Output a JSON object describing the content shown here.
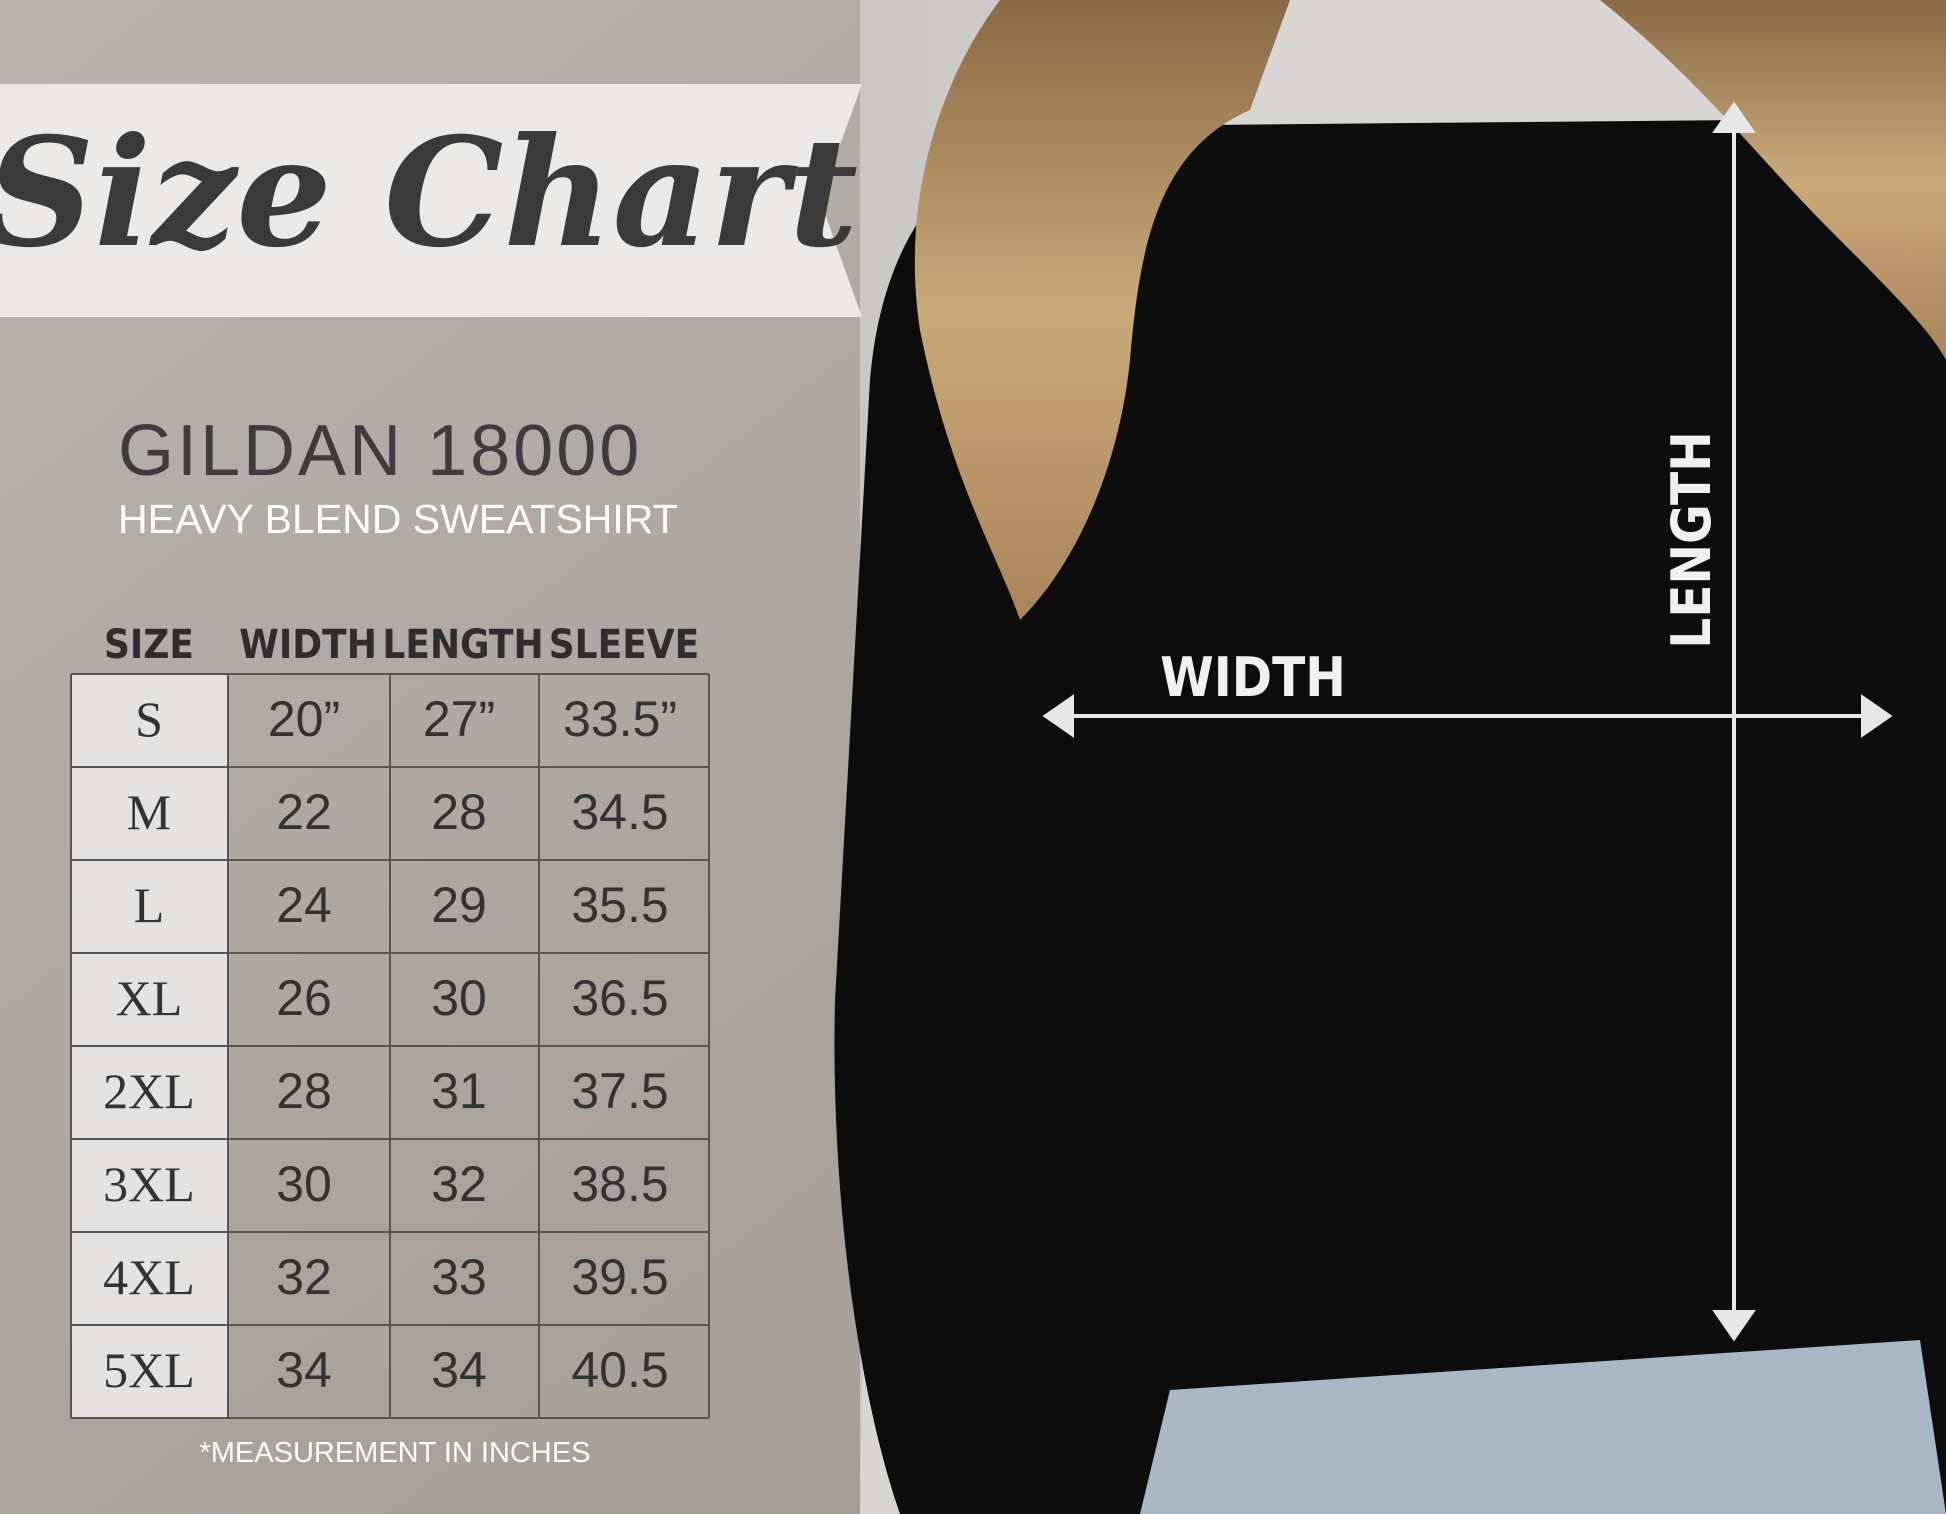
{
  "header": {
    "title": "Size Chart"
  },
  "product": {
    "model": "GILDAN 18000",
    "subtitle": "HEAVY BLEND SWEATSHIRT"
  },
  "table": {
    "columns": [
      "SIZE",
      "WIDTH",
      "LENGTH",
      "SLEEVE"
    ],
    "rows": [
      [
        "S",
        "20”",
        "27”",
        "33.5”"
      ],
      [
        "M",
        "22",
        "28",
        "34.5"
      ],
      [
        "L",
        "24",
        "29",
        "35.5"
      ],
      [
        "XL",
        "26",
        "30",
        "36.5"
      ],
      [
        "2XL",
        "28",
        "31",
        "37.5"
      ],
      [
        "3XL",
        "30",
        "32",
        "38.5"
      ],
      [
        "4XL",
        "32",
        "33",
        "39.5"
      ],
      [
        "5XL",
        "34",
        "34",
        "40.5"
      ]
    ]
  },
  "footnote": "*MEASUREMENT IN INCHES",
  "diagram": {
    "width_label": "WIDTH",
    "length_label": "LENGTH"
  }
}
